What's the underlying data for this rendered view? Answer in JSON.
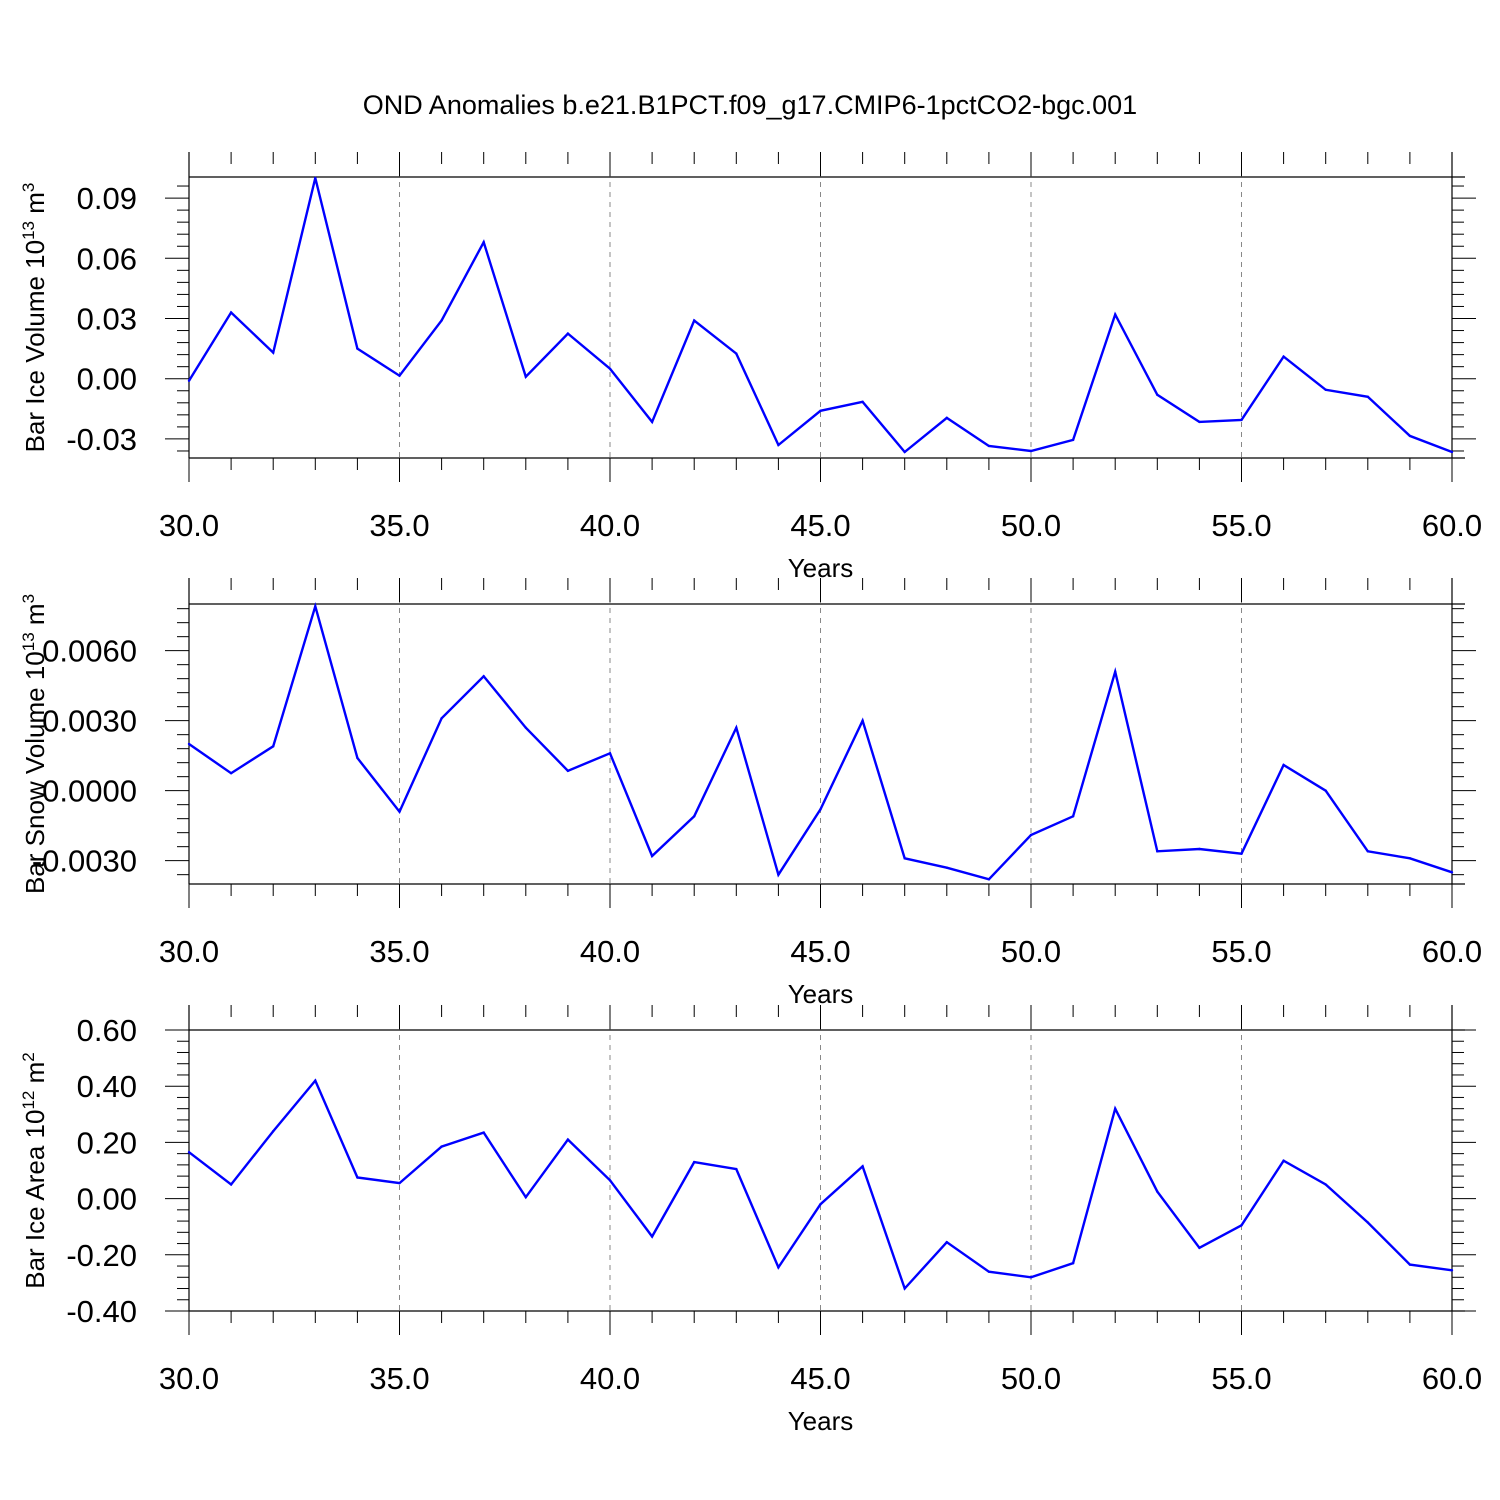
{
  "title": "OND Anomalies b.e21.B1PCT.f09_g17.CMIP6-1pctCO2-bgc.001",
  "line_color": "#0000ff",
  "chart_data": [
    {
      "type": "line",
      "ylabel_main": "Bar Ice Volume 10",
      "ylabel_exp": "13",
      "ylabel_unit": " m",
      "ylabel_unit_exp": "3",
      "xlabel": "Years",
      "xlim": [
        30,
        60
      ],
      "ylim": [
        -0.0395,
        0.1005
      ],
      "x_ticks": [
        30,
        35,
        40,
        45,
        50,
        55,
        60
      ],
      "x_tick_labels": [
        "30.0",
        "35.0",
        "40.0",
        "45.0",
        "50.0",
        "55.0",
        "60.0"
      ],
      "y_ticks": [
        -0.03,
        0.0,
        0.03,
        0.06,
        0.09
      ],
      "y_tick_labels": [
        "-0.03",
        "0.00",
        "0.03",
        "0.06",
        "0.09"
      ],
      "grid": "vertical dashed at major x ticks",
      "x": [
        30,
        31,
        32,
        33,
        34,
        35,
        36,
        37,
        38,
        39,
        40,
        41,
        42,
        43,
        44,
        45,
        46,
        47,
        48,
        49,
        50,
        51,
        52,
        53,
        54,
        55,
        56,
        57,
        58,
        59,
        60
      ],
      "values": [
        -0.001,
        0.033,
        0.013,
        0.1,
        0.015,
        0.0015,
        0.029,
        0.068,
        0.001,
        0.0225,
        0.005,
        -0.0215,
        0.029,
        0.0125,
        -0.033,
        -0.016,
        -0.0115,
        -0.0365,
        -0.0195,
        -0.0335,
        -0.036,
        -0.0305,
        0.032,
        -0.008,
        -0.0215,
        -0.0205,
        0.011,
        -0.0055,
        -0.009,
        -0.0285,
        -0.0365
      ]
    },
    {
      "type": "line",
      "ylabel_main": "Bar Snow Volume 10",
      "ylabel_exp": "13",
      "ylabel_unit": " m",
      "ylabel_unit_exp": "3",
      "xlabel": "Years",
      "xlim": [
        30,
        60
      ],
      "ylim": [
        -0.004,
        0.008
      ],
      "x_ticks": [
        30,
        35,
        40,
        45,
        50,
        55,
        60
      ],
      "x_tick_labels": [
        "30.0",
        "35.0",
        "40.0",
        "45.0",
        "50.0",
        "55.0",
        "60.0"
      ],
      "y_ticks": [
        -0.003,
        0.0,
        0.003,
        0.006
      ],
      "y_tick_labels": [
        "-0.0030",
        "0.0000",
        "0.0030",
        "0.0060"
      ],
      "grid": "vertical dashed at major x ticks",
      "x": [
        30,
        31,
        32,
        33,
        34,
        35,
        36,
        37,
        38,
        39,
        40,
        41,
        42,
        43,
        44,
        45,
        46,
        47,
        48,
        49,
        50,
        51,
        52,
        53,
        54,
        55,
        56,
        57,
        58,
        59,
        60
      ],
      "values": [
        0.002,
        0.00075,
        0.0019,
        0.0079,
        0.0014,
        -0.0009,
        0.0031,
        0.0049,
        0.0027,
        0.00085,
        0.0016,
        -0.0028,
        -0.0011,
        0.0027,
        -0.0036,
        -0.0008,
        0.003,
        -0.0029,
        -0.0033,
        -0.0038,
        -0.0019,
        -0.0011,
        0.0051,
        -0.0026,
        -0.0025,
        -0.0027,
        0.0011,
        0.0,
        -0.0026,
        -0.0029,
        -0.0035
      ]
    },
    {
      "type": "line",
      "ylabel_main": "Bar Ice Area 10",
      "ylabel_exp": "12",
      "ylabel_unit": " m",
      "ylabel_unit_exp": "2",
      "xlabel": "Years",
      "xlim": [
        30,
        60
      ],
      "ylim": [
        -0.4,
        0.6
      ],
      "x_ticks": [
        30,
        35,
        40,
        45,
        50,
        55,
        60
      ],
      "x_tick_labels": [
        "30.0",
        "35.0",
        "40.0",
        "45.0",
        "50.0",
        "55.0",
        "60.0"
      ],
      "y_ticks": [
        -0.4,
        -0.2,
        0.0,
        0.2,
        0.4,
        0.6
      ],
      "y_tick_labels": [
        "-0.40",
        "-0.20",
        "0.00",
        "0.20",
        "0.40",
        "0.60"
      ],
      "grid": "vertical dashed at major x ticks",
      "x": [
        30,
        31,
        32,
        33,
        34,
        35,
        36,
        37,
        38,
        39,
        40,
        41,
        42,
        43,
        44,
        45,
        46,
        47,
        48,
        49,
        50,
        51,
        52,
        53,
        54,
        55,
        56,
        57,
        58,
        59,
        60
      ],
      "values": [
        0.165,
        0.05,
        0.24,
        0.42,
        0.075,
        0.055,
        0.185,
        0.235,
        0.005,
        0.21,
        0.065,
        -0.135,
        0.13,
        0.105,
        -0.245,
        -0.02,
        0.115,
        -0.32,
        -0.155,
        -0.26,
        -0.28,
        -0.23,
        0.32,
        0.025,
        -0.175,
        -0.095,
        0.135,
        0.05,
        -0.085,
        -0.235,
        -0.255
      ]
    }
  ]
}
